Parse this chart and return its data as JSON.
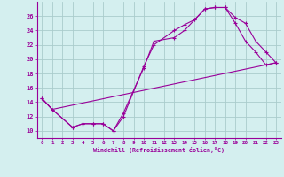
{
  "xlabel": "Windchill (Refroidissement éolien,°C)",
  "bg_color": "#d4efef",
  "line_color": "#990099",
  "grid_color": "#aacccc",
  "xlim": [
    -0.5,
    23.5
  ],
  "ylim": [
    9.0,
    28.0
  ],
  "yticks": [
    10,
    12,
    14,
    16,
    18,
    20,
    22,
    24,
    26
  ],
  "xticks": [
    0,
    1,
    2,
    3,
    4,
    5,
    6,
    7,
    8,
    9,
    10,
    11,
    12,
    13,
    14,
    15,
    16,
    17,
    18,
    19,
    20,
    21,
    22,
    23
  ],
  "line1_x": [
    0,
    1,
    3,
    4,
    5,
    6,
    7,
    8,
    10,
    11,
    13,
    14,
    15,
    16,
    17,
    18,
    19,
    20,
    21,
    22,
    23
  ],
  "line1_y": [
    14.5,
    13.0,
    10.5,
    11.0,
    11.0,
    11.0,
    10.0,
    12.0,
    19.0,
    22.0,
    24.0,
    24.8,
    25.5,
    27.0,
    27.2,
    27.2,
    25.0,
    22.5,
    21.0,
    19.2,
    19.5
  ],
  "line2_x": [
    0,
    1,
    3,
    4,
    5,
    6,
    7,
    8,
    10,
    11,
    13,
    14,
    15,
    16,
    17,
    18,
    19,
    20,
    21,
    22,
    23
  ],
  "line2_y": [
    14.5,
    13.0,
    10.5,
    11.0,
    11.0,
    11.0,
    10.0,
    12.5,
    18.8,
    22.5,
    23.0,
    24.0,
    25.5,
    27.0,
    27.2,
    27.2,
    25.8,
    25.0,
    22.5,
    21.0,
    19.5
  ],
  "line3_x": [
    0,
    1,
    23
  ],
  "line3_y": [
    14.5,
    13.0,
    19.5
  ]
}
